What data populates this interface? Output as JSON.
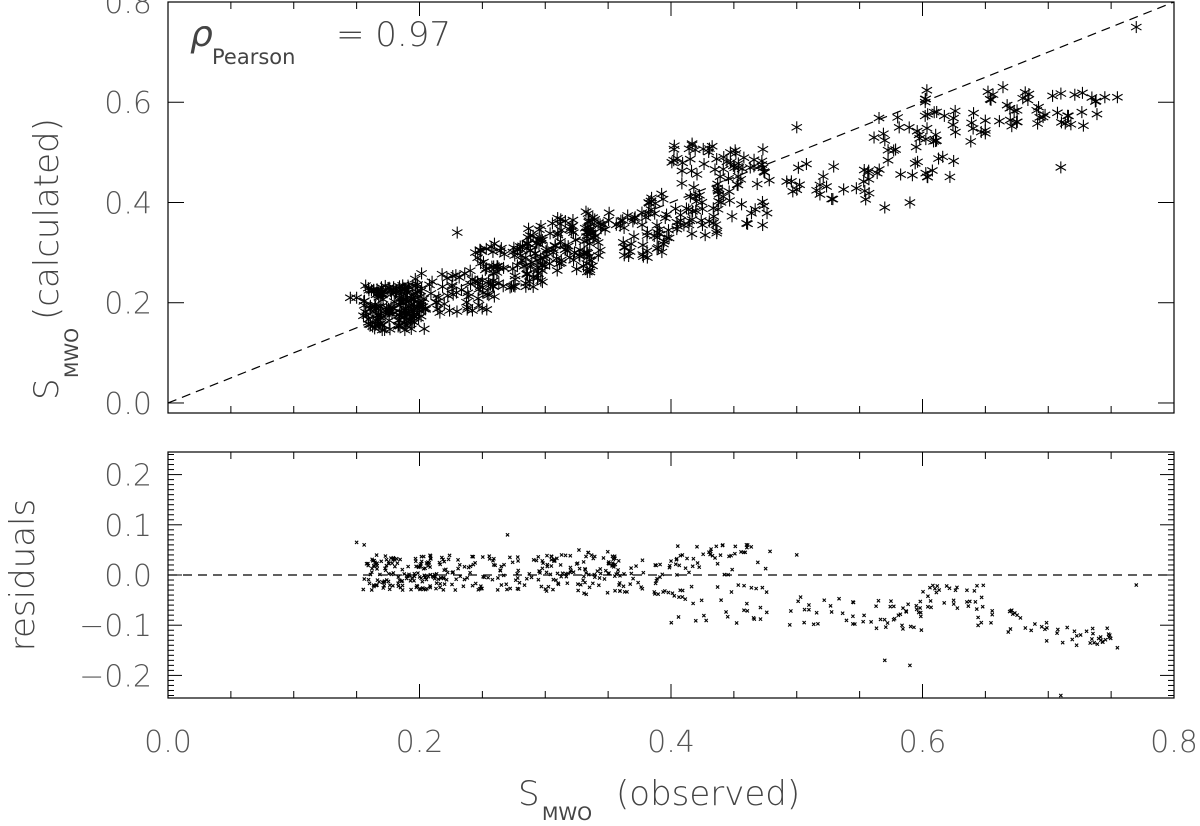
{
  "chart_data": [
    {
      "type": "scatter",
      "panel": "top",
      "annotation": {
        "symbol": "ρ",
        "subscript": "Pearson",
        "text": "= 0.97"
      },
      "xlabel": "",
      "ylabel": {
        "main": "S",
        "sub": "MWO",
        "rest": "(calculated)"
      },
      "xlim": [
        0.0,
        0.8
      ],
      "ylim": [
        -0.02,
        0.8
      ],
      "xticks": [
        0.0,
        0.2,
        0.4,
        0.6,
        0.8
      ],
      "yticks": [
        0.0,
        0.2,
        0.4,
        0.6,
        0.8
      ],
      "ytick_labels": [
        "0.0",
        "0.2",
        "0.4",
        "0.6",
        "0.8"
      ],
      "reference_line": {
        "style": "dashed",
        "from": [
          0.0,
          0.0
        ],
        "to": [
          0.8,
          0.8
        ]
      },
      "marker": "asterisk",
      "clusters": [
        {
          "x_range": [
            0.155,
            0.205
          ],
          "y_range": [
            0.145,
            0.235
          ],
          "count": 150
        },
        {
          "x_range": [
            0.195,
            0.26
          ],
          "y_range": [
            0.18,
            0.26
          ],
          "count": 60
        },
        {
          "x_range": [
            0.24,
            0.3
          ],
          "y_range": [
            0.23,
            0.32
          ],
          "count": 70
        },
        {
          "x_range": [
            0.28,
            0.34
          ],
          "y_range": [
            0.26,
            0.37
          ],
          "count": 90
        },
        {
          "x_range": [
            0.33,
            0.4
          ],
          "y_range": [
            0.29,
            0.39
          ],
          "count": 60
        },
        {
          "x_range": [
            0.38,
            0.44
          ],
          "y_range": [
            0.33,
            0.42
          ],
          "count": 45
        },
        {
          "x_range": [
            0.4,
            0.48
          ],
          "y_range": [
            0.43,
            0.52
          ],
          "count": 50
        },
        {
          "x_range": [
            0.42,
            0.48
          ],
          "y_range": [
            0.35,
            0.45
          ],
          "count": 25
        },
        {
          "x_range": [
            0.49,
            0.56
          ],
          "y_range": [
            0.4,
            0.48
          ],
          "count": 25
        },
        {
          "x_range": [
            0.56,
            0.63
          ],
          "y_range": [
            0.45,
            0.58
          ],
          "count": 35
        },
        {
          "x_range": [
            0.6,
            0.66
          ],
          "y_range": [
            0.52,
            0.63
          ],
          "count": 25
        },
        {
          "x_range": [
            0.66,
            0.74
          ],
          "y_range": [
            0.55,
            0.62
          ],
          "count": 35
        }
      ],
      "points": [
        [
          0.15,
          0.21
        ],
        [
          0.145,
          0.21
        ],
        [
          0.38,
          0.37
        ],
        [
          0.5,
          0.55
        ],
        [
          0.57,
          0.39
        ],
        [
          0.59,
          0.4
        ],
        [
          0.71,
          0.47
        ],
        [
          0.745,
          0.61
        ],
        [
          0.755,
          0.61
        ],
        [
          0.77,
          0.75
        ],
        [
          0.664,
          0.63
        ],
        [
          0.23,
          0.34
        ]
      ]
    },
    {
      "type": "scatter",
      "panel": "bottom",
      "xlabel": {
        "main": "S",
        "sub": "MWO",
        "rest": "(observed)"
      },
      "ylabel": "residuals",
      "xlim": [
        0.0,
        0.8
      ],
      "ylim": [
        -0.245,
        0.245
      ],
      "xticks": [
        0.0,
        0.2,
        0.4,
        0.6,
        0.8
      ],
      "xtick_labels": [
        "0.0",
        "0.2",
        "0.4",
        "0.6",
        "0.8"
      ],
      "yticks": [
        -0.2,
        -0.1,
        0.0,
        0.1,
        0.2
      ],
      "ytick_labels": [
        "−0.2",
        "−0.1",
        "0.0",
        "0.1",
        "0.2"
      ],
      "reference_line": {
        "style": "dashed",
        "y": 0.0
      },
      "marker": "small-x",
      "clusters": [
        {
          "x_range": [
            0.155,
            0.22
          ],
          "y_range": [
            -0.03,
            0.04
          ],
          "count": 150
        },
        {
          "x_range": [
            0.22,
            0.3
          ],
          "y_range": [
            -0.03,
            0.04
          ],
          "count": 80
        },
        {
          "x_range": [
            0.3,
            0.36
          ],
          "y_range": [
            -0.04,
            0.05
          ],
          "count": 90
        },
        {
          "x_range": [
            0.35,
            0.4
          ],
          "y_range": [
            -0.04,
            0.03
          ],
          "count": 40
        },
        {
          "x_range": [
            0.4,
            0.48
          ],
          "y_range": [
            0.0,
            0.06
          ],
          "count": 45
        },
        {
          "x_range": [
            0.4,
            0.48
          ],
          "y_range": [
            -0.1,
            -0.02
          ],
          "count": 35
        },
        {
          "x_range": [
            0.49,
            0.56
          ],
          "y_range": [
            -0.1,
            -0.04
          ],
          "count": 25
        },
        {
          "x_range": [
            0.56,
            0.6
          ],
          "y_range": [
            -0.11,
            -0.05
          ],
          "count": 30
        },
        {
          "x_range": [
            0.6,
            0.65
          ],
          "y_range": [
            -0.07,
            -0.02
          ],
          "count": 30
        },
        {
          "x_range": [
            0.64,
            0.7
          ],
          "y_range": [
            -0.12,
            -0.07
          ],
          "count": 20
        },
        {
          "x_range": [
            0.68,
            0.75
          ],
          "y_range": [
            -0.14,
            -0.1
          ],
          "count": 30
        }
      ],
      "points": [
        [
          0.15,
          0.065
        ],
        [
          0.156,
          0.06
        ],
        [
          0.5,
          0.04
        ],
        [
          0.57,
          -0.17
        ],
        [
          0.59,
          -0.18
        ],
        [
          0.71,
          -0.24
        ],
        [
          0.755,
          -0.145
        ],
        [
          0.77,
          -0.02
        ],
        [
          0.46,
          0.06
        ],
        [
          0.27,
          0.08
        ]
      ]
    }
  ]
}
